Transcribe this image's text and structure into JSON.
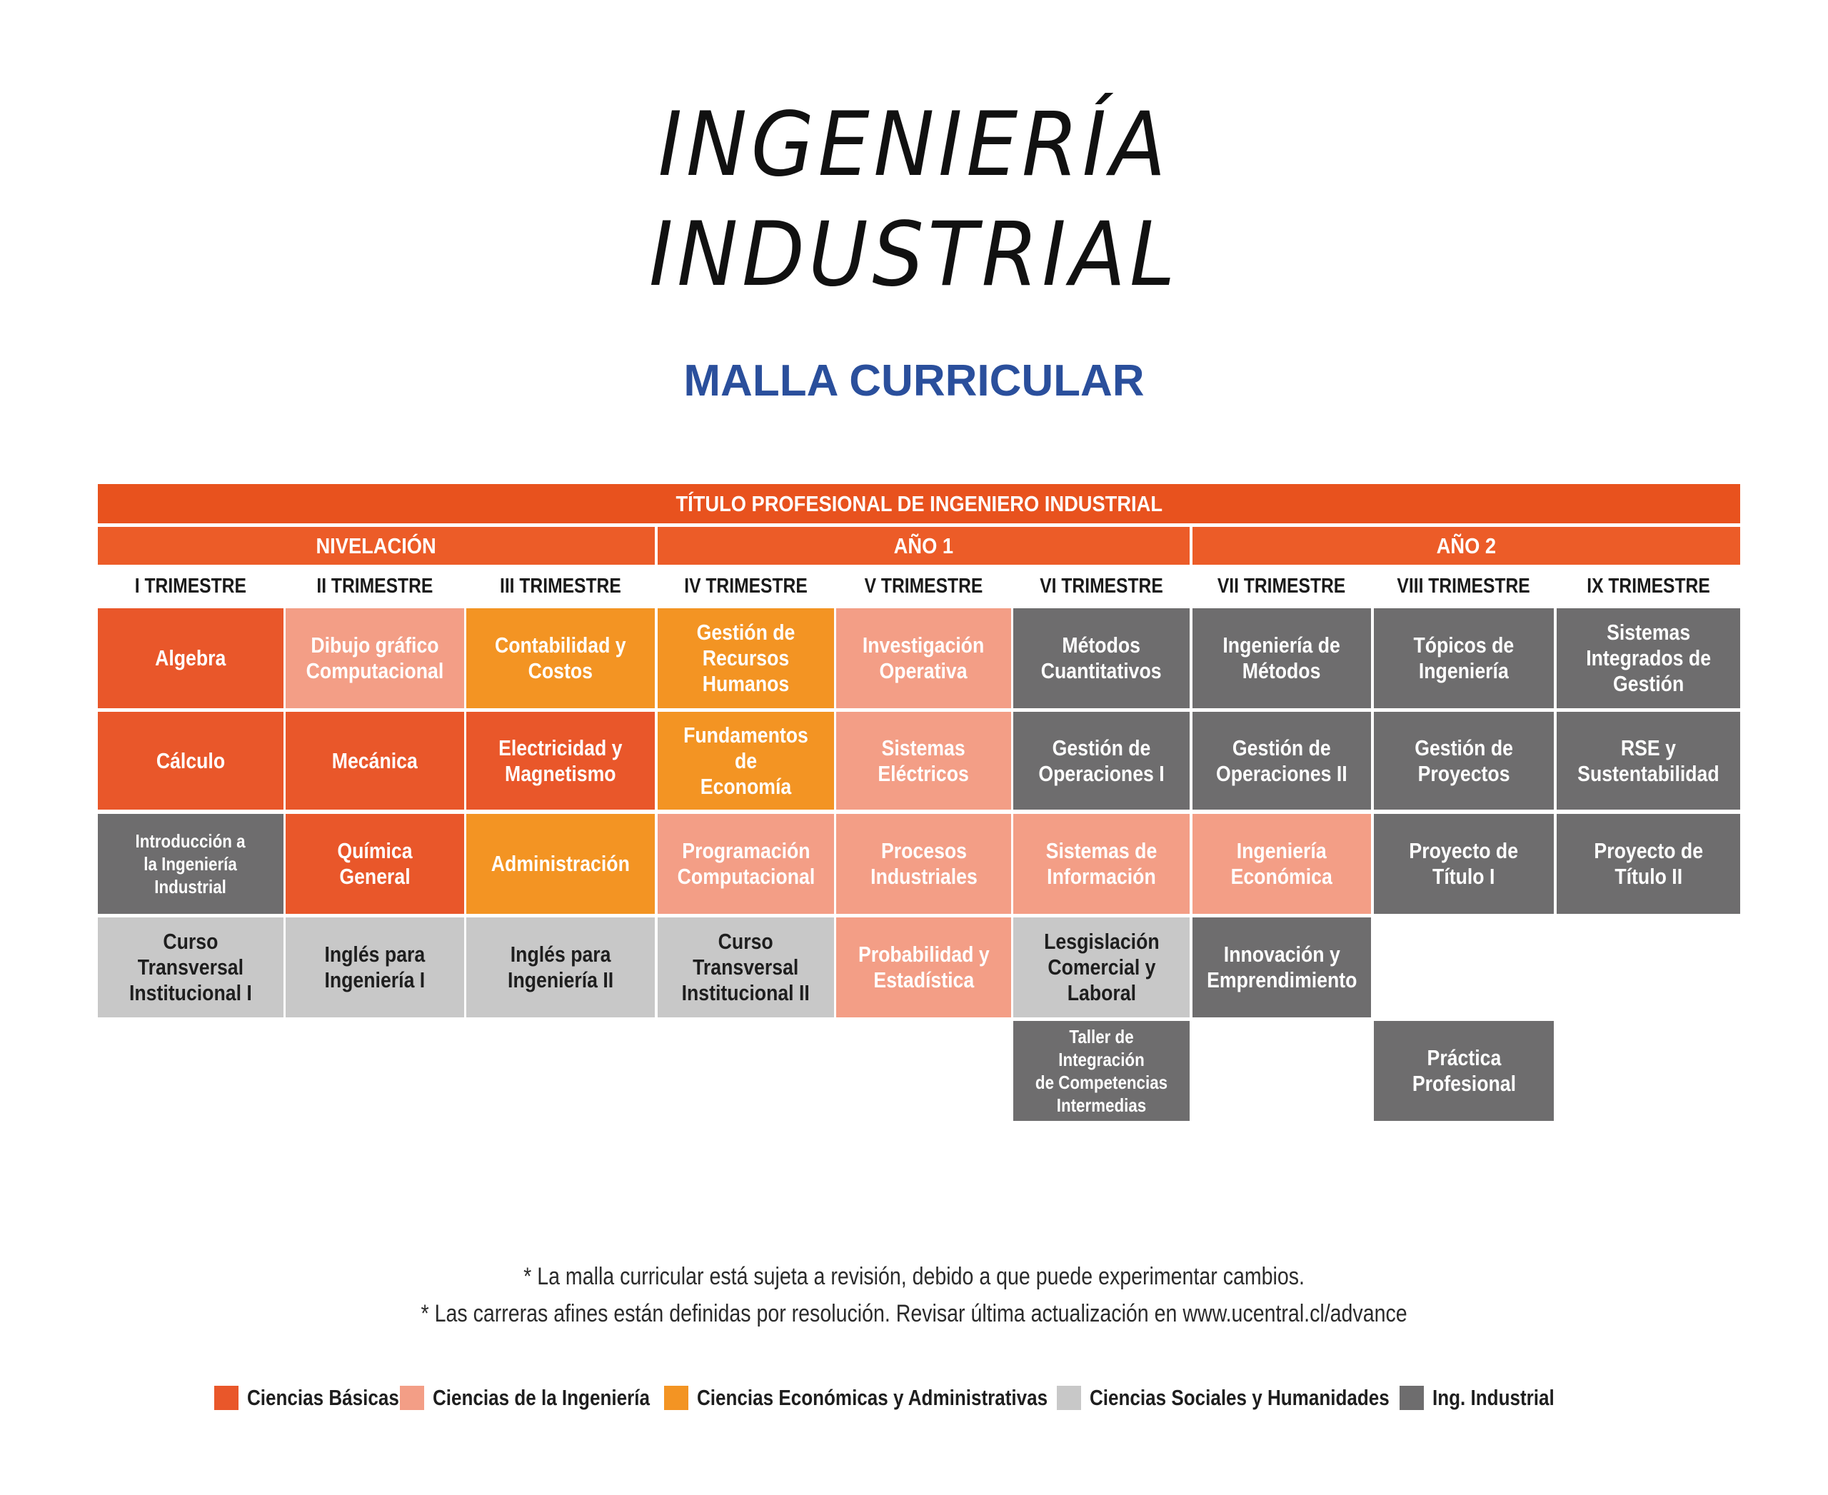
{
  "header": {
    "title_line1": "INGENIERÍA",
    "title_line2": "INDUSTRIAL",
    "subtitle": "MALLA CURRICULAR"
  },
  "table": {
    "degree_title": "TÍTULO PROFESIONAL DE INGENIERO INDUSTRIAL",
    "periods": [
      "NIVELACIÓN",
      "AÑO 1",
      "AÑO 2"
    ],
    "trimesters": [
      "I TRIMESTRE",
      "II TRIMESTRE",
      "III TRIMESTRE",
      "IV TRIMESTRE",
      "V TRIMESTRE",
      "VI TRIMESTRE",
      "VII TRIMESTRE",
      "VIII TRIMESTRE",
      "IX TRIMESTRE"
    ],
    "courses": [
      {
        "label": "Algebra",
        "area": "basicas"
      },
      {
        "label": "Dibujo gráfico\nComputacional",
        "area": "ing"
      },
      {
        "label": "Contabilidad y\nCostos",
        "area": "econ"
      },
      {
        "label": "Gestión de\nRecursos Humanos",
        "area": "econ"
      },
      {
        "label": "Investigación\nOperativa",
        "area": "ing"
      },
      {
        "label": "Métodos\nCuantitativos",
        "area": "ind"
      },
      {
        "label": "Ingeniería de\nMétodos",
        "area": "ind"
      },
      {
        "label": "Tópicos de\nIngeniería",
        "area": "ind"
      },
      {
        "label": "Sistemas\nIntegrados de\nGestión",
        "area": "ind"
      },
      {
        "label": "Cálculo",
        "area": "basicas"
      },
      {
        "label": "Mecánica",
        "area": "basicas"
      },
      {
        "label": "Electricidad y\nMagnetismo",
        "area": "basicas"
      },
      {
        "label": "Fundamentos de\nEconomía",
        "area": "econ"
      },
      {
        "label": "Sistemas\nEléctricos",
        "area": "ing"
      },
      {
        "label": "Gestión de\nOperaciones I",
        "area": "ind"
      },
      {
        "label": "Gestión de\nOperaciones II",
        "area": "ind"
      },
      {
        "label": "Gestión de\nProyectos",
        "area": "ind"
      },
      {
        "label": "RSE y\nSustentabilidad",
        "area": "ind"
      },
      {
        "label": "Introducción a\nla Ingeniería\nIndustrial",
        "area": "ind"
      },
      {
        "label": "Química General",
        "area": "basicas"
      },
      {
        "label": "Administración",
        "area": "econ"
      },
      {
        "label": "Programación\nComputacional",
        "area": "ing"
      },
      {
        "label": "Procesos\nIndustriales",
        "area": "ing"
      },
      {
        "label": "Sistemas de\nInformación",
        "area": "ing"
      },
      {
        "label": "Ingeniería\nEconómica",
        "area": "ing"
      },
      {
        "label": "Proyecto de\nTítulo I",
        "area": "ind"
      },
      {
        "label": "Proyecto de\nTítulo II",
        "area": "ind"
      },
      {
        "label": "Curso\nTransversal\nInstitucional I",
        "area": "soc"
      },
      {
        "label": "Inglés para\nIngeniería I",
        "area": "soc"
      },
      {
        "label": "Inglés para\nIngeniería II",
        "area": "soc"
      },
      {
        "label": "Curso\nTransversal\nInstitucional II",
        "area": "soc"
      },
      {
        "label": "Probabilidad y\nEstadística",
        "area": "ing"
      },
      {
        "label": "Lesgislación\nComercial y\nLaboral",
        "area": "soc"
      },
      {
        "label": "Innovación y\nEmprendimiento",
        "area": "ind"
      },
      {
        "label": "Taller de Integración\nde Competencias\nIntermedias",
        "area": "ind"
      },
      {
        "label": "Práctica\nProfesional",
        "area": "ind"
      }
    ]
  },
  "notes": [
    "* La  malla curricular está sujeta a revisión, debido a que puede experimentar cambios.",
    "* Las carreras afines están definidas por resolución. Revisar última actualización en www.ucentral.cl/advance"
  ],
  "legend": [
    {
      "label": "Ciencias Básicas",
      "color": "#e9572a"
    },
    {
      "label": "Ciencias de la Ingeniería",
      "color": "#f39e86"
    },
    {
      "label": "Ciencias Económicas y Administrativas",
      "color": "#f39423"
    },
    {
      "label": "Ciencias Sociales y Humanidades",
      "color": "#c8c8c8"
    },
    {
      "label": "Ing. Industrial",
      "color": "#6e6d6e"
    }
  ]
}
